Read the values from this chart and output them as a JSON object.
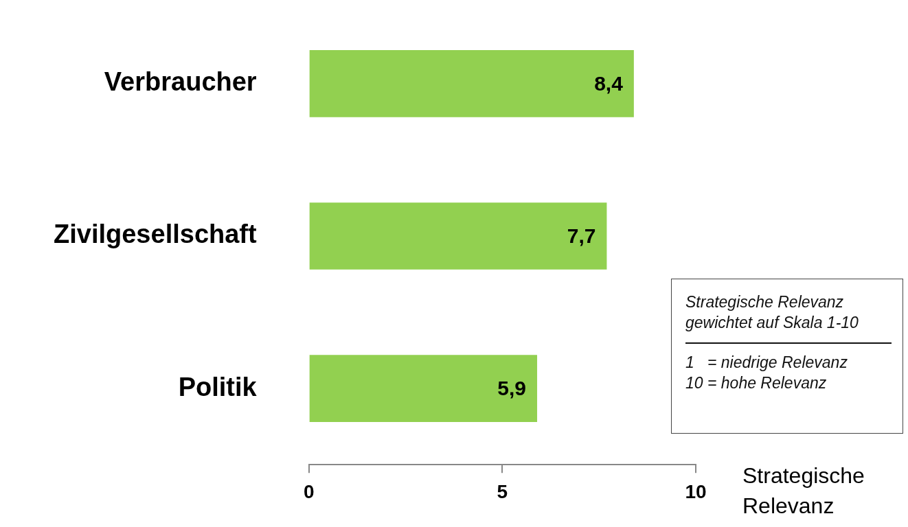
{
  "chart_data": {
    "type": "bar",
    "orientation": "horizontal",
    "categories": [
      "Verbraucher",
      "Zivilgesellschaft",
      "Politik"
    ],
    "values": [
      8.4,
      7.7,
      5.9
    ],
    "color": "#92d050",
    "value_labels": [
      "8,4",
      "7,7",
      "5,9"
    ],
    "xlim": [
      0,
      10
    ],
    "xticks": [
      0,
      5,
      10
    ],
    "xlabel": "Strategische Relevanz",
    "annotations": [
      "Strategische Relevanz gewichtet auf Skala 1-10",
      "1   = niedrige Relevanz",
      "10 = hohe Relevanz"
    ]
  }
}
